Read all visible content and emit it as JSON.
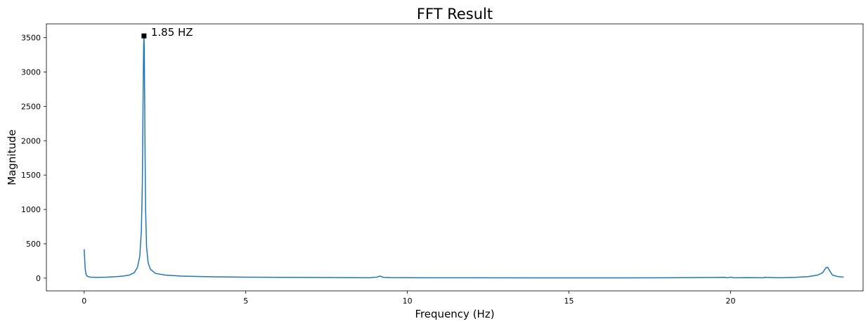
{
  "chart_data": {
    "type": "line",
    "title": "FFT Result",
    "xlabel": "Frequency (Hz)",
    "ylabel": "Magnitude",
    "xlim": [
      -1.17,
      24.1
    ],
    "ylim": [
      -185,
      3700
    ],
    "xticks": [
      0,
      5,
      10,
      15,
      20
    ],
    "yticks": [
      0,
      500,
      1000,
      1500,
      2000,
      2500,
      3000,
      3500
    ],
    "grid": false,
    "line_color": "#1f77b4",
    "series": [
      {
        "x": [
          0,
          0.03,
          0.06,
          0.1,
          0.2,
          0.4,
          0.7,
          1.0,
          1.2,
          1.4,
          1.55,
          1.65,
          1.72,
          1.77,
          1.8,
          1.82,
          1.84,
          1.85,
          1.86,
          1.88,
          1.9,
          1.93,
          1.98,
          2.05,
          2.2,
          2.5,
          3.0,
          4.0,
          5.0,
          6.0,
          7.0,
          8.0,
          8.8,
          9.05,
          9.15,
          9.25,
          9.5,
          10.5,
          12,
          14,
          16,
          18,
          19.8,
          19.9,
          20.0,
          20.1,
          20.5,
          21.0,
          21.05,
          21.5,
          22.0,
          22.4,
          22.7,
          22.85,
          22.95,
          23.0,
          23.05,
          23.15,
          23.3,
          23.5
        ],
        "y": [
          420,
          140,
          50,
          25,
          15,
          12,
          15,
          22,
          30,
          45,
          80,
          160,
          320,
          700,
          1400,
          2500,
          3400,
          3525,
          3300,
          2000,
          1000,
          450,
          220,
          130,
          70,
          45,
          30,
          20,
          15,
          12,
          10,
          8,
          5,
          15,
          30,
          12,
          8,
          6,
          5,
          4,
          4,
          5,
          12,
          6,
          14,
          6,
          8,
          5,
          12,
          6,
          12,
          22,
          45,
          80,
          150,
          160,
          120,
          45,
          25,
          15
        ]
      }
    ],
    "annotations": [
      {
        "text": "1.85 HZ",
        "x": 1.85,
        "y": 3525,
        "marker": "square",
        "marker_color": "#000000"
      }
    ]
  }
}
